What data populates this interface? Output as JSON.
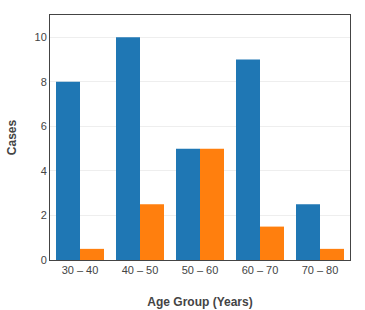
{
  "chart_data": {
    "type": "bar",
    "xlabel": "Age Group (Years)",
    "ylabel": "Cases",
    "categories": [
      "30 – 40",
      "40 – 50",
      "50 – 60",
      "60 – 70",
      "70 – 80"
    ],
    "series": [
      {
        "values": [
          8,
          10,
          5,
          9,
          2.5
        ]
      },
      {
        "values": [
          0.5,
          2.5,
          5,
          1.5,
          0.5
        ]
      }
    ],
    "ylim": [
      0,
      11
    ],
    "yticks": [
      0,
      2,
      4,
      6,
      8,
      10
    ],
    "grid": true
  }
}
